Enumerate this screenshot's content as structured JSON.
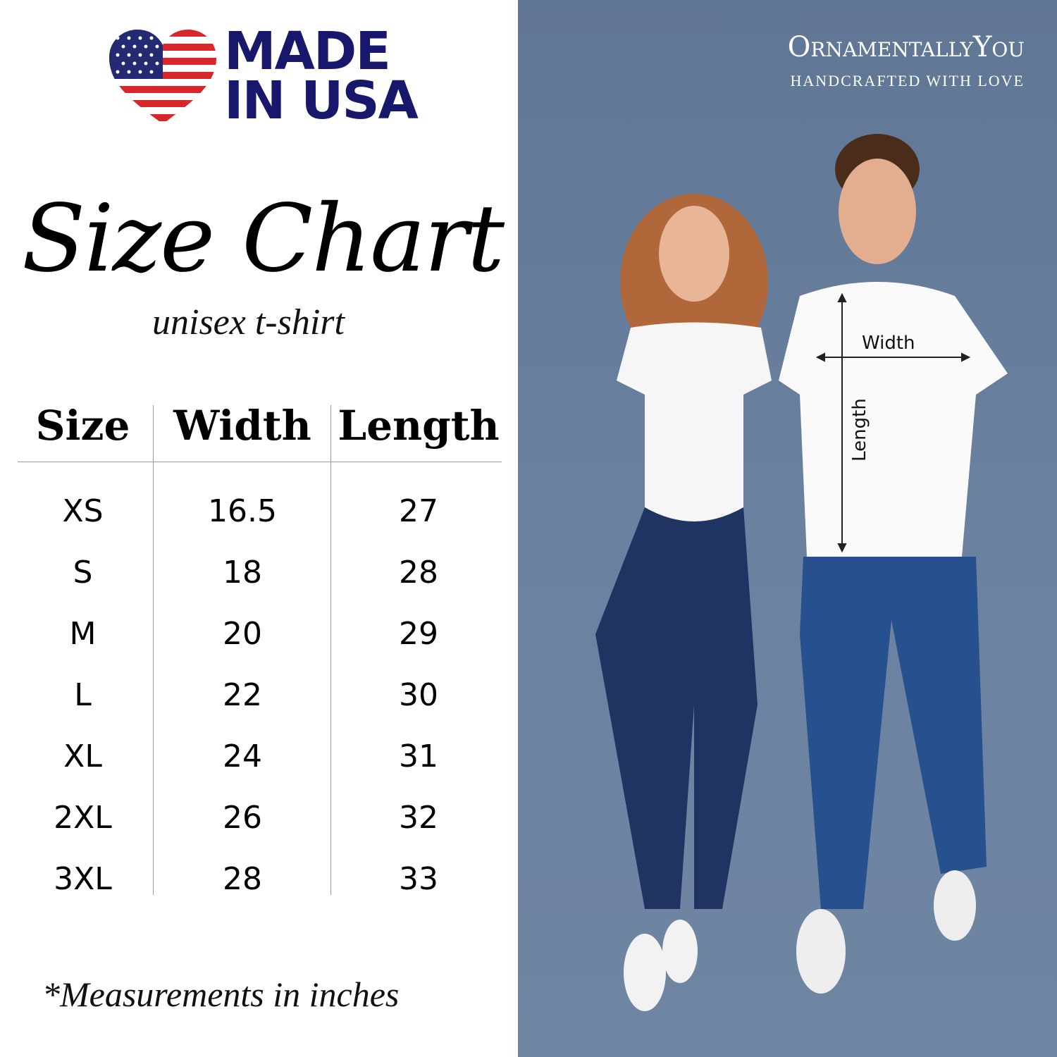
{
  "badge": {
    "line1": "MADE",
    "line2": "IN USA",
    "icon": "us-flag-heart-icon",
    "color": "#17186b"
  },
  "title": "Size Chart",
  "subtitle": "unisex t-shirt",
  "table": {
    "headers": [
      "Size",
      "Width",
      "Length"
    ],
    "rows": [
      [
        "XS",
        "16.5",
        "27"
      ],
      [
        "S",
        "18",
        "28"
      ],
      [
        "M",
        "20",
        "29"
      ],
      [
        "L",
        "22",
        "30"
      ],
      [
        "XL",
        "24",
        "31"
      ],
      [
        "2XL",
        "26",
        "32"
      ],
      [
        "3XL",
        "28",
        "33"
      ]
    ]
  },
  "footnote": "*Measurements in inches",
  "brand": {
    "name": "OrnamentallyYou",
    "tagline": "HANDCRAFTED WITH LOVE"
  },
  "photo": {
    "width_label": "Width",
    "length_label": "Length",
    "background": "#6a81a0"
  }
}
